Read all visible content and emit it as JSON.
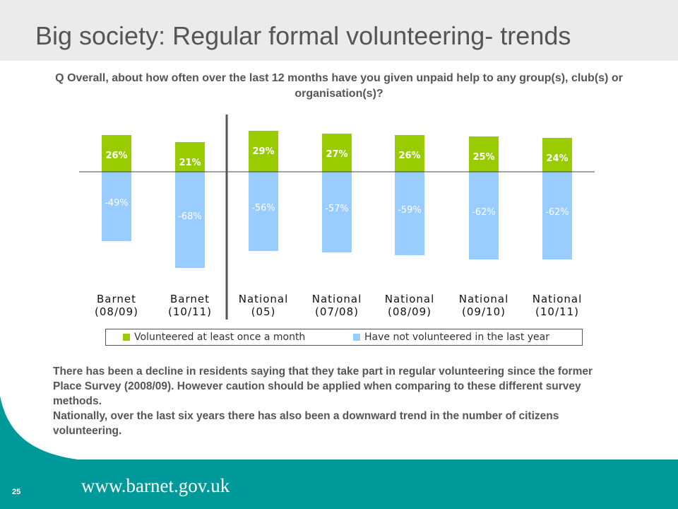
{
  "slide": {
    "title": "Big society: Regular formal volunteering- trends",
    "question": "Q Overall, about how often over the last 12 months have you given unpaid help to any group(s), club(s) or organisation(s)?",
    "commentary": [
      "There has been a decline in residents saying that they take part in regular volunteering since the former Place Survey (2008/09).  However caution should be applied when comparing to these different survey methods.",
      "Nationally, over the last six years there has also been a downward trend in the number of citizens volunteering."
    ],
    "page_number": "25",
    "footer_url": "www.barnet.gov.uk"
  },
  "chart_data": {
    "type": "bar",
    "stacked_diverging": true,
    "categories": [
      "Barnet (08/09)",
      "Barnet (10/11)",
      "National (05)",
      "National (07/08)",
      "National (08/09)",
      "National (09/10)",
      "National (10/11)"
    ],
    "category_lines": [
      [
        "Barnet",
        "(08/09)"
      ],
      [
        "Barnet",
        "(10/11)"
      ],
      [
        "National",
        "(05)"
      ],
      [
        "National",
        "(07/08)"
      ],
      [
        "National",
        "(08/09)"
      ],
      [
        "National",
        "(09/10)"
      ],
      [
        "National",
        "(10/11)"
      ]
    ],
    "series": [
      {
        "name": "Volunteered at least once a month",
        "color": "#99cc00",
        "values": [
          26,
          21,
          29,
          27,
          26,
          25,
          24
        ],
        "labels": [
          "26%",
          "21%",
          "29%",
          "27%",
          "26%",
          "25%",
          "24%"
        ]
      },
      {
        "name": "Have not volunteered in the last year",
        "color": "#99ccff",
        "values": [
          -49,
          -68,
          -56,
          -57,
          -59,
          -62,
          -62
        ],
        "labels": [
          "-49%",
          "-68%",
          "-56%",
          "-57%",
          "-59%",
          "-62%",
          "-62%"
        ]
      }
    ],
    "legend_position": "bottom",
    "separator_after_category": 1,
    "grid": false
  },
  "colors": {
    "title_band": "#ebebeb",
    "footer": "#009999",
    "positive": "#99cc00",
    "negative": "#99ccff"
  }
}
